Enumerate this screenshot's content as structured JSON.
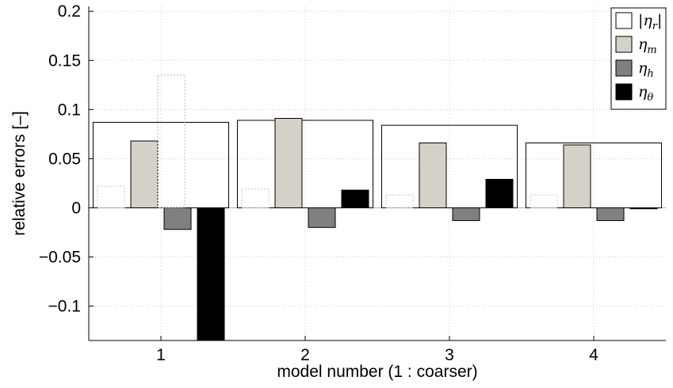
{
  "chart_data": {
    "type": "bar",
    "xlabel": "model number (1 : coarser)",
    "ylabel": "relative errors [–]",
    "categories": [
      "1",
      "2",
      "3",
      "4"
    ],
    "ylim": [
      -0.135,
      0.205
    ],
    "yticks": [
      -0.1,
      -0.05,
      0,
      0.05,
      0.1,
      0.15,
      0.2
    ],
    "ytick_labels": [
      "−0.1",
      "−0.05",
      "0",
      "0.05",
      "0.1",
      "0.15",
      "0.2"
    ],
    "grid": true,
    "legend_position": "top-right",
    "envelope_values": [
      0.087,
      0.089,
      0.084,
      0.066
    ],
    "series": [
      {
        "name": "|ηr|",
        "legend_label": "|η",
        "legend_sub": "r",
        "legend_suffix": "|",
        "values": [
          0.022,
          0.019,
          0.013,
          0.013
        ],
        "color": "#ffffff"
      },
      {
        "name": "ηm",
        "legend_label": "η",
        "legend_sub": "m",
        "legend_suffix": "",
        "values": [
          0.068,
          0.091,
          0.066,
          0.064
        ],
        "color": "#d6d1c8"
      },
      {
        "name": "ηh",
        "legend_label": "η",
        "legend_sub": "h",
        "legend_suffix": "",
        "values": [
          -0.022,
          -0.02,
          -0.013,
          -0.013
        ],
        "color": "#808080"
      },
      {
        "name": "ηθ",
        "legend_label": "η",
        "legend_sub": "θ",
        "legend_suffix": "",
        "values": [
          -0.135,
          0.018,
          0.029,
          -0.001
        ],
        "color": "#000000"
      }
    ],
    "dotted_outline": {
      "category_index": 0,
      "value": 0.135
    }
  }
}
